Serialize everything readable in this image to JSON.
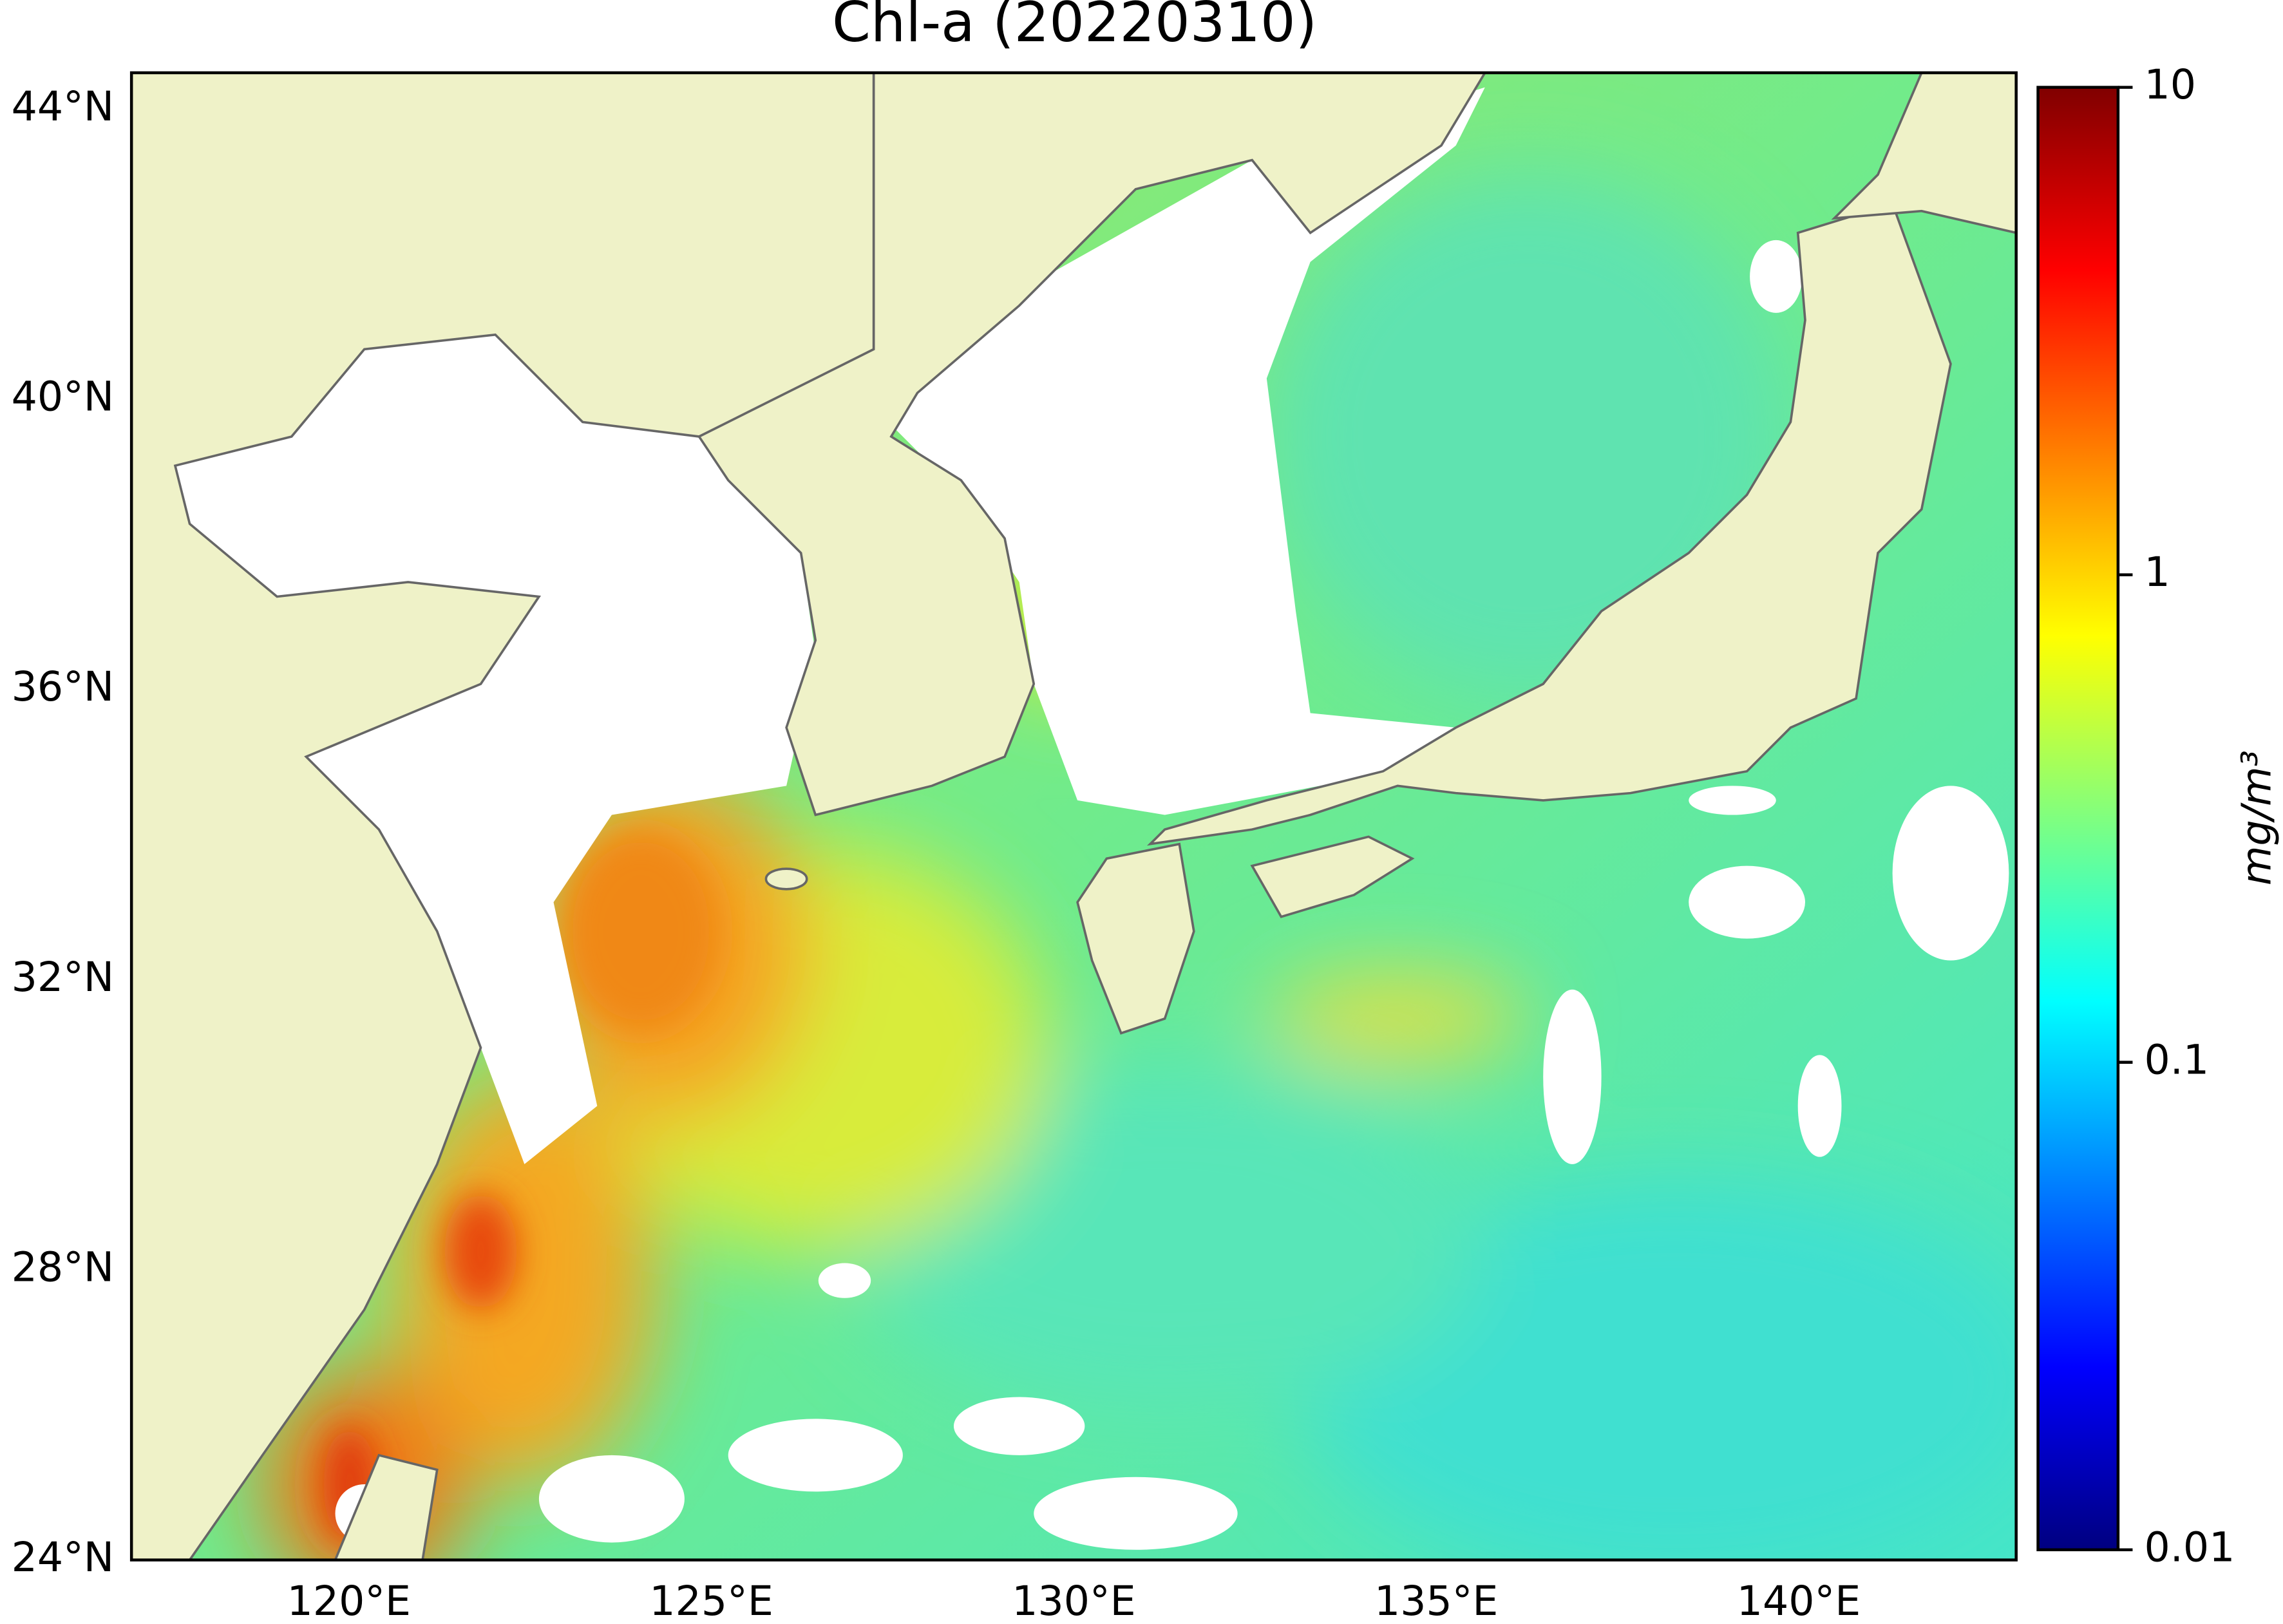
{
  "chart_data": {
    "type": "map",
    "title": "Chl-a (20220310)",
    "xlim": [
      117,
      143
    ],
    "ylim": [
      24,
      44.5
    ],
    "xticks": [
      {
        "value": 120,
        "label": "120°E"
      },
      {
        "value": 125,
        "label": "125°E"
      },
      {
        "value": 130,
        "label": "130°E"
      },
      {
        "value": 135,
        "label": "135°E"
      },
      {
        "value": 140,
        "label": "140°E"
      }
    ],
    "yticks": [
      {
        "value": 24,
        "label": "24°N"
      },
      {
        "value": 28,
        "label": "28°N"
      },
      {
        "value": 32,
        "label": "32°N"
      },
      {
        "value": 36,
        "label": "36°N"
      },
      {
        "value": 40,
        "label": "40°N"
      },
      {
        "value": 44,
        "label": "44°N"
      }
    ],
    "colorbar": {
      "label": "mg/m³",
      "scale": "log",
      "colormap": "jet",
      "lim": [
        0.01,
        10
      ],
      "ticks": [
        0.01,
        0.1,
        1,
        10
      ]
    }
  }
}
